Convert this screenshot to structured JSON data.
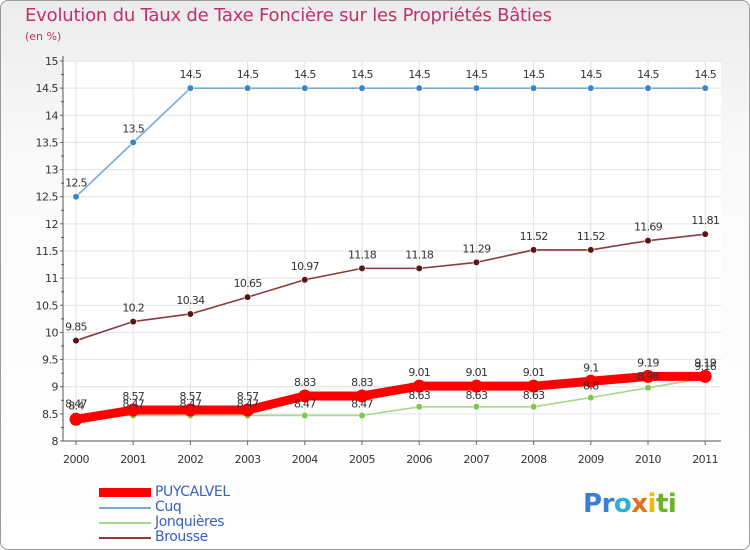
{
  "title": "Evolution du Taux de Taxe Foncière sur les Propriétés Bâties",
  "unit_label": "(en %)",
  "logo": {
    "letters": [
      "P",
      "r",
      "o",
      "x",
      "i",
      "t",
      "i"
    ],
    "colors": [
      "#3a7fd5",
      "#3a7fd5",
      "#2bb0d8",
      "#e0701a",
      "#f2b800",
      "#6ab526",
      "#6ab526"
    ]
  },
  "chart_data": {
    "type": "line",
    "title": "Evolution du Taux de Taxe Foncière sur les Propriétés Bâties",
    "ylabel": "(en %)",
    "xlabel": "",
    "x": [
      "2000",
      "2001",
      "2002",
      "2003",
      "2004",
      "2005",
      "2006",
      "2007",
      "2008",
      "2009",
      "2010",
      "2011"
    ],
    "ylim": [
      8,
      15
    ],
    "yticks": [
      "8",
      "8.5",
      "9",
      "9.5",
      "10",
      "10.5",
      "11",
      "11.5",
      "12",
      "12.5",
      "13",
      "13.5",
      "14",
      "14.5",
      "15"
    ],
    "grid": true,
    "legend_position": "bottom-left",
    "series": [
      {
        "name": "PUYCALVEL",
        "color": "#ff0000",
        "marker": "#ff0000",
        "values": [
          8.4,
          8.57,
          8.57,
          8.57,
          8.83,
          8.83,
          9.01,
          9.01,
          9.01,
          9.1,
          9.19,
          9.19
        ],
        "labels": [
          "8.4",
          "8.57",
          "8.57",
          "8.57",
          "8.83",
          "8.83",
          "9.01",
          "9.01",
          "9.01",
          "9.1",
          "9.19",
          "9.19"
        ]
      },
      {
        "name": "Cuq",
        "color": "#7aaad2",
        "marker": "#3a86c8",
        "values": [
          12.5,
          13.5,
          14.5,
          14.5,
          14.5,
          14.5,
          14.5,
          14.5,
          14.5,
          14.5,
          14.5,
          14.5
        ],
        "labels": [
          "12.5",
          "13.5",
          "14.5",
          "14.5",
          "14.5",
          "14.5",
          "14.5",
          "14.5",
          "14.5",
          "14.5",
          "14.5",
          "14.5"
        ]
      },
      {
        "name": "Jonquières",
        "color": "#a8d88a",
        "marker": "#7cc84a",
        "values": [
          8.47,
          8.47,
          8.47,
          8.47,
          8.47,
          8.47,
          8.63,
          8.63,
          8.63,
          8.8,
          8.98,
          9.16
        ],
        "labels": [
          "8.47",
          "8.47",
          "8.47",
          "8.47",
          "8.47",
          "8.47",
          "8.63",
          "8.63",
          "8.63",
          "8.8",
          "8.98",
          "9.16"
        ]
      },
      {
        "name": "Brousse",
        "color": "#8a3a3a",
        "marker": "#5a1414",
        "values": [
          9.85,
          10.2,
          10.34,
          10.65,
          10.97,
          11.18,
          11.18,
          11.29,
          11.52,
          11.52,
          11.69,
          11.81
        ],
        "labels": [
          "9.85",
          "10.2",
          "10.34",
          "10.65",
          "10.97",
          "11.18",
          "11.18",
          "11.29",
          "11.52",
          "11.52",
          "11.69",
          "11.81"
        ]
      }
    ]
  }
}
